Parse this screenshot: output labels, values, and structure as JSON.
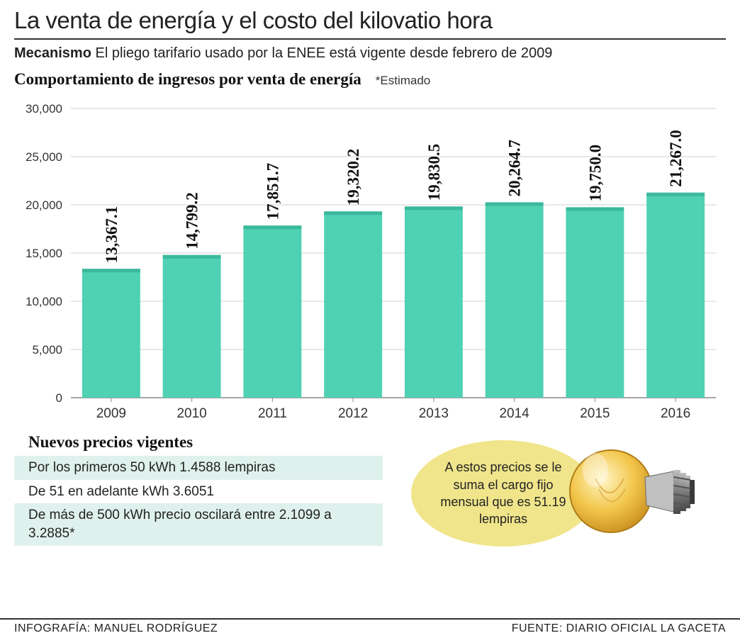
{
  "title": "La venta de energía y el costo del kilovatio hora",
  "subtitle_bold": "Mecanismo",
  "subtitle_rest": " El pliego tarifario usado por la ENEE está vigente desde febrero de 2009",
  "chart": {
    "title": "Comportamiento de ingresos por venta de energía",
    "estimate_note": "*Estimado",
    "type": "bar",
    "categories": [
      "2009",
      "2010",
      "2011",
      "2012",
      "2013",
      "2014",
      "2015",
      "2016"
    ],
    "values": [
      13367.1,
      14799.2,
      17851.7,
      19320.2,
      19830.5,
      20264.7,
      19750.0,
      21267.0
    ],
    "value_labels": [
      "13,367.1",
      "14,799.2",
      "17,851.7",
      "19,320.2",
      "19,830.5",
      "20,264.7",
      "19,750.0",
      "21,267.0"
    ],
    "bar_color": "#4fd1b3",
    "bar_top_color": "#3bb99c",
    "ylim": [
      0,
      30000
    ],
    "yticks": [
      0,
      5000,
      10000,
      15000,
      20000,
      25000,
      30000
    ],
    "ytick_labels": [
      "0",
      "5,000",
      "10,000",
      "15,000",
      "20,000",
      "25,000",
      "30,000"
    ],
    "grid_color": "#cfcfcf",
    "background_color": "#ffffff",
    "bar_width_ratio": 0.72,
    "label_fontsize": 23,
    "tick_fontsize": 17
  },
  "prices": {
    "title": "Nuevos precios vigentes",
    "rows": [
      "Por los primeros 50 kWh 1.4588 lempiras",
      "De 51 en adelante kWh 3.6051",
      "De más de 500 kWh precio oscilará entre 2.1099 a 3.2885*"
    ],
    "shaded_indices": [
      0,
      2
    ],
    "shade_color": "#dff1ec"
  },
  "callout": {
    "text": "A estos precios se le suma el cargo fijo mensual que es 51.19 lempiras",
    "bubble_color": "#f0e58a",
    "bulb_glass_color": "#f2c64a",
    "bulb_base_color": "#8a8a8a"
  },
  "footer": {
    "left": "INFOGRAFÍA: MANUEL RODRÍGUEZ",
    "right": "FUENTE: DIARIO OFICIAL LA GACETA"
  }
}
